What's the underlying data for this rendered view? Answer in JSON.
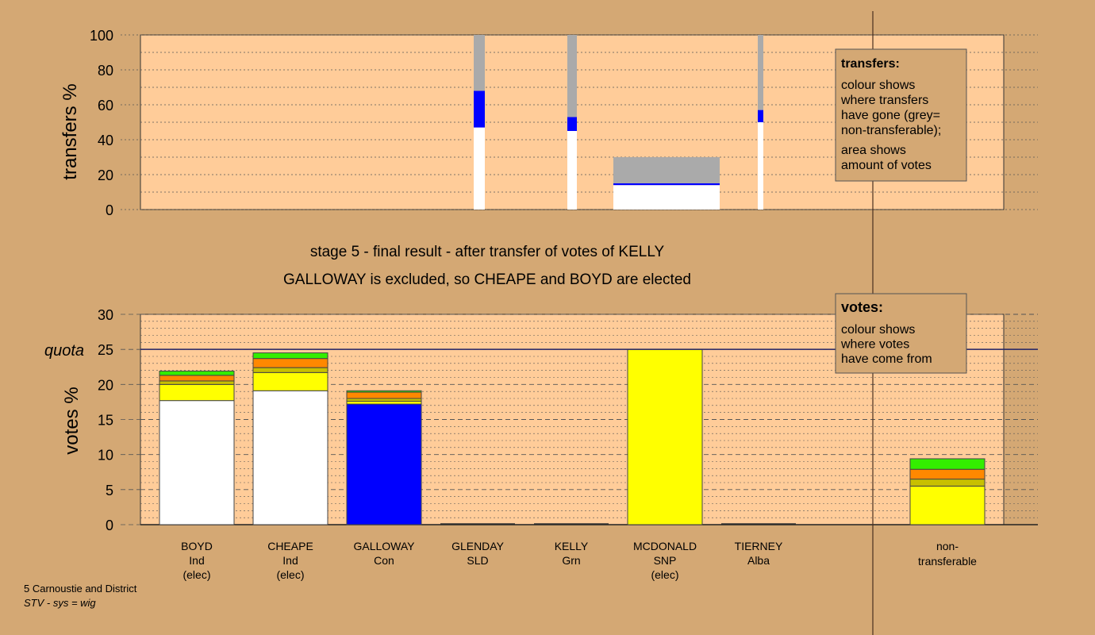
{
  "chart_data": [
    {
      "type": "bar",
      "ylabel": "transfers %",
      "ylim": [
        0,
        100
      ],
      "yticks": [
        0,
        20,
        40,
        60,
        80,
        100
      ],
      "columns": [
        {
          "candidate": "GLENDAY",
          "x_from": 597,
          "x_to": 611,
          "kept": 47,
          "to_con": 21,
          "non_transferable": 32
        },
        {
          "candidate": "KELLY",
          "x_from": 715,
          "x_to": 727,
          "kept": 45,
          "to_con": 8,
          "non_transferable": 47
        },
        {
          "candidate": "MCDONALD",
          "x_from": 773,
          "x_to": 907,
          "kept": 14,
          "to_con": 1,
          "non_transferable": 15
        },
        {
          "candidate": "TIERNEY",
          "x_from": 955,
          "x_to": 962,
          "kept": 50,
          "to_con": 7,
          "non_transferable": 43
        }
      ],
      "legend": {
        "title": "transfers:",
        "lines": [
          "colour shows",
          "where transfers",
          "have gone (grey=",
          "non-transferable);",
          "",
          "area shows",
          "amount of votes"
        ]
      }
    },
    {
      "type": "bar",
      "title_lines": [
        "stage 5 - final result - after transfer of votes of KELLY",
        "GALLOWAY is excluded, so CHEAPE and BOYD are elected"
      ],
      "ylabel": "votes %",
      "ylim": [
        0,
        30
      ],
      "yticks": [
        0,
        5,
        10,
        15,
        20,
        25,
        30
      ],
      "quota": 25,
      "quota_label": "quota",
      "categories": [
        {
          "name": "BOYD",
          "party": "Ind",
          "status": "(elec)"
        },
        {
          "name": "CHEAPE",
          "party": "Ind",
          "status": "(elec)"
        },
        {
          "name": "GALLOWAY",
          "party": "Con",
          "status": ""
        },
        {
          "name": "GLENDAY",
          "party": "SLD",
          "status": ""
        },
        {
          "name": "KELLY",
          "party": "Grn",
          "status": ""
        },
        {
          "name": "MCDONALD",
          "party": "SNP",
          "status": "(elec)"
        },
        {
          "name": "TIERNEY",
          "party": "Alba",
          "status": ""
        }
      ],
      "stacks": [
        [
          {
            "c": "#ffffff",
            "v": 17.7
          },
          {
            "c": "#ffff00",
            "v": 2.3
          },
          {
            "c": "#c8c000",
            "v": 0.5
          },
          {
            "c": "#ff8800",
            "v": 0.8
          },
          {
            "c": "#33ee00",
            "v": 0.6
          }
        ],
        [
          {
            "c": "#ffffff",
            "v": 19.1
          },
          {
            "c": "#ffff00",
            "v": 2.6
          },
          {
            "c": "#c8c000",
            "v": 0.7
          },
          {
            "c": "#ff8800",
            "v": 1.3
          },
          {
            "c": "#33ee00",
            "v": 0.8
          }
        ],
        [
          {
            "c": "#0000ff",
            "v": 17.2
          },
          {
            "c": "#ffff00",
            "v": 0.4
          },
          {
            "c": "#c8c000",
            "v": 0.4
          },
          {
            "c": "#ff8800",
            "v": 0.9
          },
          {
            "c": "#33ee00",
            "v": 0.2
          }
        ],
        [],
        [],
        [
          {
            "c": "#ffff00",
            "v": 25.0
          }
        ],
        []
      ],
      "nontransferable": {
        "label_lines": [
          "non-",
          "transferable"
        ],
        "stack": [
          {
            "c": "#ffff00",
            "v": 5.5
          },
          {
            "c": "#c8c000",
            "v": 1.0
          },
          {
            "c": "#ff8800",
            "v": 1.4
          },
          {
            "c": "#33ee00",
            "v": 1.5
          }
        ]
      },
      "legend": {
        "title": "votes:",
        "lines": [
          "colour shows",
          "where votes",
          "have come from"
        ]
      }
    }
  ],
  "footer": {
    "ward": "5 Carnoustie and District",
    "system": "STV - sys = wig"
  },
  "colors": {
    "background": "#d4a874",
    "plot_area": "#ffcc99",
    "grey": "#aaaaaa",
    "con": "#0000ff"
  }
}
